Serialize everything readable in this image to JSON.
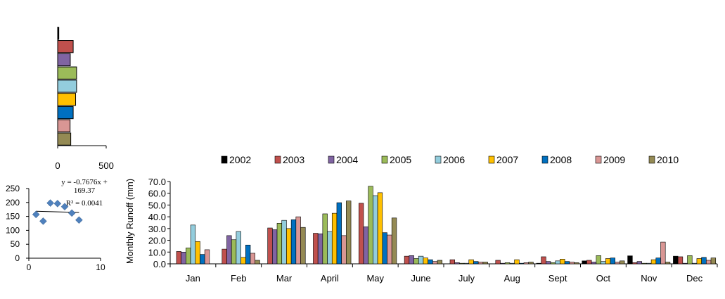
{
  "colors": {
    "2002": "#000000",
    "2003": "#c0504d",
    "2004": "#8064a2",
    "2005": "#9bbb59",
    "2006": "#93cddd",
    "2007": "#ffc000",
    "2008": "#0070c0",
    "2009": "#d99694",
    "2010": "#948a54",
    "scatter_marker": "#4f81bd"
  },
  "chart_data": [
    {
      "type": "bar",
      "orientation": "horizontal",
      "categories": [
        "2002",
        "2003",
        "2004",
        "2005",
        "2006",
        "2007",
        "2008",
        "2009",
        "2010"
      ],
      "values": [
        12,
        160,
        130,
        195,
        195,
        185,
        160,
        128,
        135
      ],
      "xlim": [
        0,
        500
      ],
      "xticks": [
        "0",
        "500"
      ],
      "grid": false
    },
    {
      "type": "scatter",
      "x": [
        1,
        2,
        3,
        4,
        5,
        6,
        7
      ],
      "y": [
        157,
        133,
        198,
        196,
        185,
        162,
        137
      ],
      "xlim": [
        0,
        10
      ],
      "ylim": [
        0,
        250
      ],
      "xticks": [
        "0",
        "10"
      ],
      "yticks": [
        "0",
        "50",
        "100",
        "150",
        "200",
        "250"
      ],
      "trendline": {
        "slope": -0.7676,
        "intercept": 169.37
      },
      "equation_line1": "y = -0.7676x +",
      "equation_line2": "169.37",
      "r2_label": "R² = 0.0041",
      "grid": false
    },
    {
      "type": "bar",
      "categories": [
        "Jan",
        "Feb",
        "Mar",
        "April",
        "May",
        "June",
        "July",
        "Aug",
        "Sept",
        "Oct",
        "Nov",
        "Dec"
      ],
      "series": [
        {
          "name": "2002",
          "values": [
            0.0,
            0.0,
            0.0,
            0.0,
            0.0,
            0.0,
            0.0,
            0.0,
            0.5,
            2.5,
            6.8,
            6.5
          ]
        },
        {
          "name": "2003",
          "values": [
            10.5,
            12.5,
            30.5,
            26.0,
            51.5,
            6.5,
            3.5,
            3.0,
            6.0,
            3.0,
            1.0,
            6.0
          ]
        },
        {
          "name": "2004",
          "values": [
            10.0,
            24.0,
            29.0,
            25.5,
            31.5,
            7.0,
            1.0,
            0.5,
            2.0,
            1.5,
            2.0,
            0.5
          ]
        },
        {
          "name": "2005",
          "values": [
            13.5,
            20.5,
            34.5,
            42.5,
            66.0,
            4.5,
            0.5,
            1.0,
            1.0,
            7.0,
            0.5,
            7.0
          ]
        },
        {
          "name": "2006",
          "values": [
            33.0,
            27.5,
            37.0,
            27.5,
            58.0,
            6.5,
            0.5,
            0.5,
            2.5,
            2.0,
            0.5,
            0.5
          ]
        },
        {
          "name": "2007",
          "values": [
            19.0,
            5.5,
            30.0,
            43.0,
            60.5,
            5.0,
            3.5,
            3.5,
            4.0,
            4.5,
            3.5,
            4.5
          ]
        },
        {
          "name": "2008",
          "values": [
            8.0,
            16.0,
            37.5,
            52.0,
            26.5,
            3.5,
            2.0,
            0.5,
            2.0,
            5.0,
            5.0,
            5.5
          ]
        },
        {
          "name": "2009",
          "values": [
            12.0,
            9.0,
            40.0,
            24.0,
            24.5,
            2.0,
            1.5,
            1.0,
            1.5,
            1.5,
            18.5,
            3.0
          ]
        },
        {
          "name": "2010",
          "values": [
            0.0,
            3.0,
            31.0,
            53.5,
            39.0,
            3.0,
            1.5,
            1.5,
            1.0,
            2.5,
            1.5,
            5.0
          ]
        }
      ],
      "ylabel": "Monthly  Runoff (mm)",
      "ylim": [
        0,
        70
      ],
      "yticks": [
        "0.0",
        "10.0",
        "20.0",
        "30.0",
        "40.0",
        "50.0",
        "60.0",
        "70.0"
      ],
      "legend_position": "top",
      "grid": false
    }
  ]
}
